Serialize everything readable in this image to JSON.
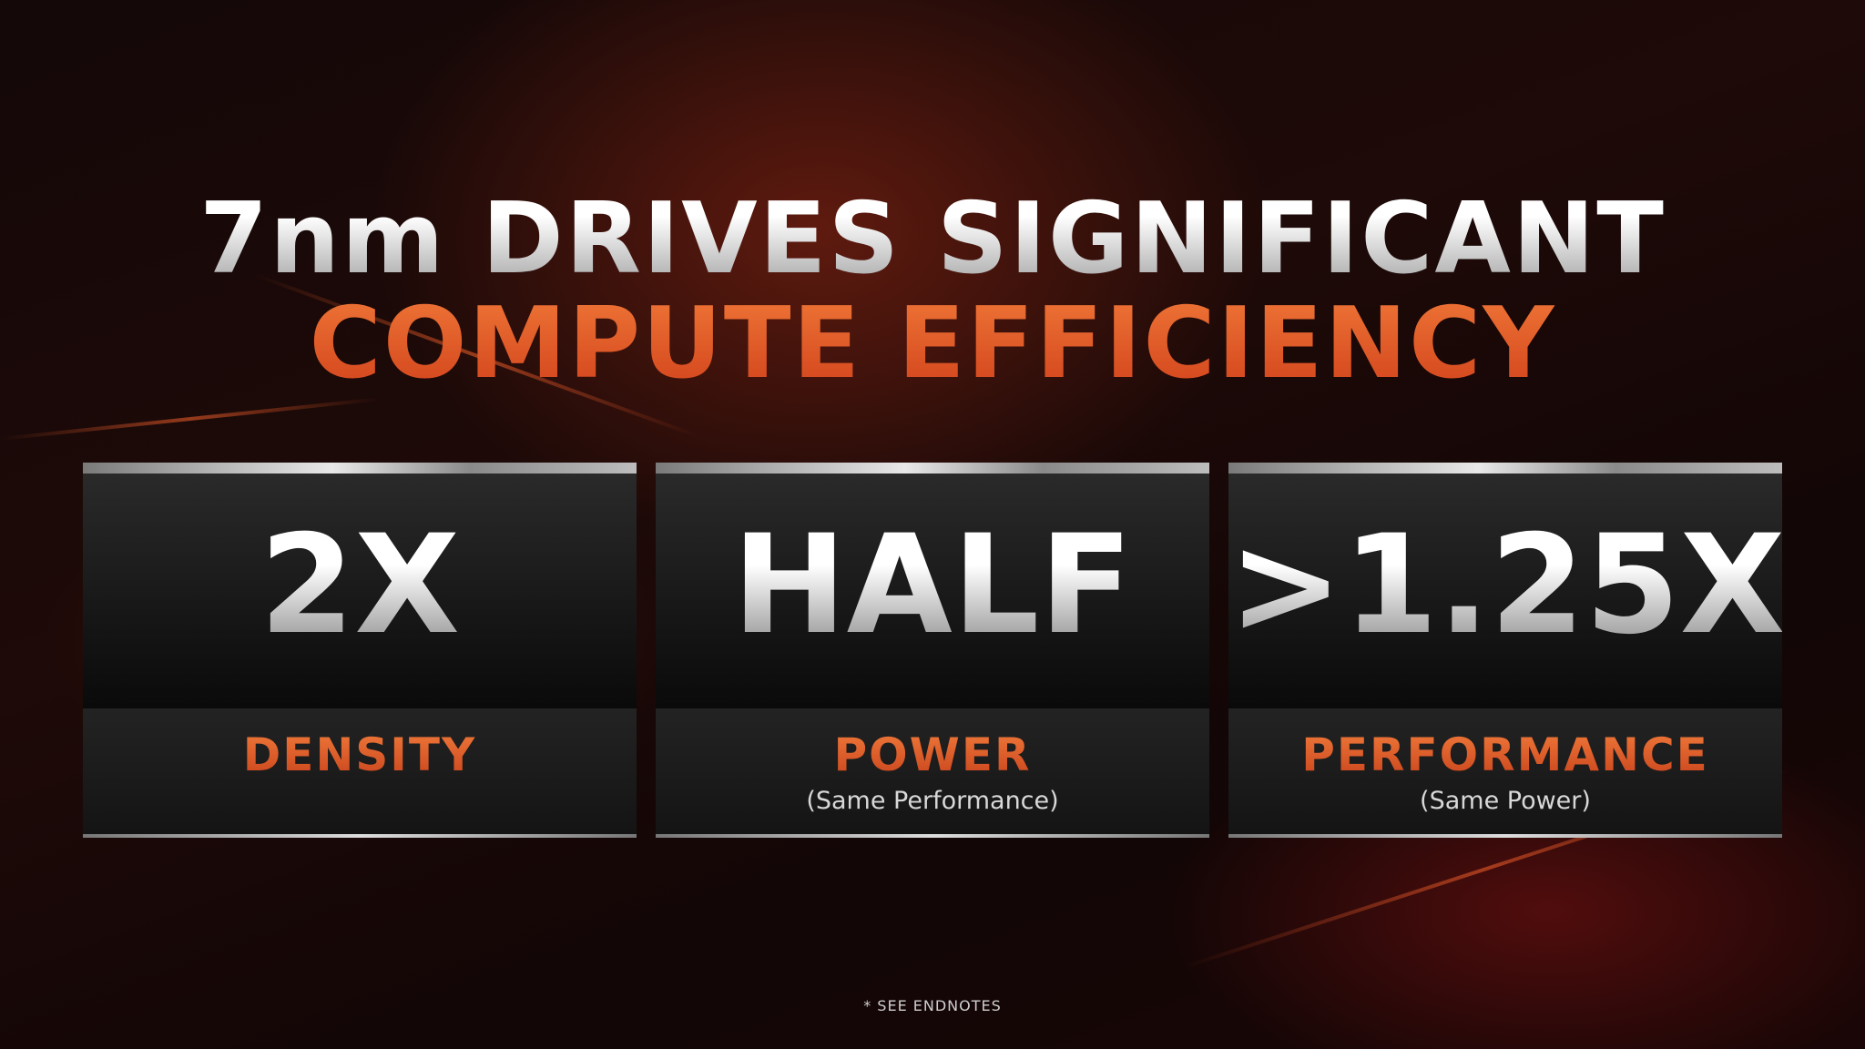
{
  "title": {
    "line1": "7nm DRIVES SIGNIFICANT",
    "line2": "COMPUTE EFFICIENCY"
  },
  "cards": [
    {
      "value": "2X",
      "label": "DENSITY"
    },
    {
      "value": "HALF",
      "label": "POWER",
      "note": "(Same Performance)"
    },
    {
      "value": ">1.25X",
      "label": "PERFORMANCE",
      "note": "(Same Power)"
    }
  ],
  "footnote": "* SEE ENDNOTES"
}
